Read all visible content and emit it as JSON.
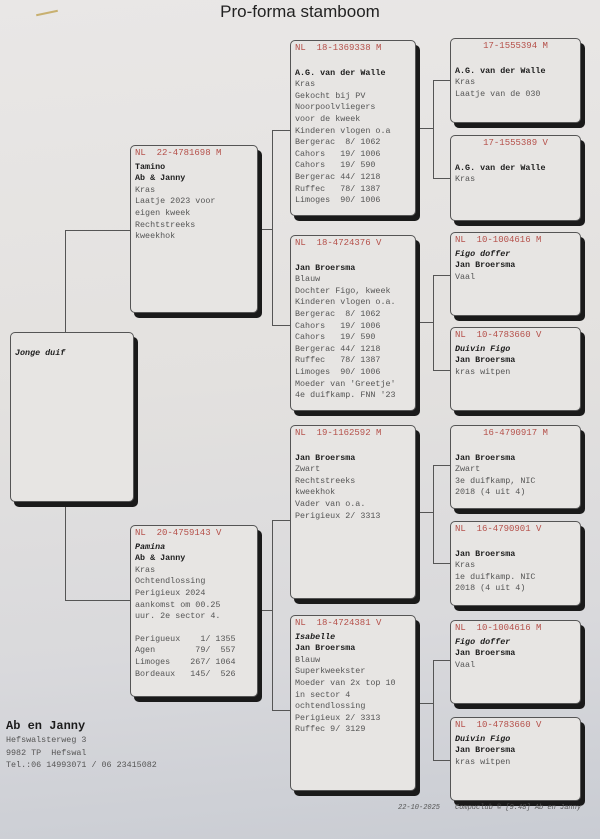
{
  "title": "Pro-forma stamboom",
  "subject": {
    "label": "Jonge duif"
  },
  "birds": [
    {
      "id": "sire",
      "ring": "NL  22-4781698 M",
      "lines": [
        {
          "t": "Tamino",
          "s": "b"
        },
        {
          "t": "Ab & Janny",
          "s": "b"
        },
        {
          "t": "Kras"
        },
        {
          "t": "Laatje 2023 voor"
        },
        {
          "t": "eigen kweek"
        },
        {
          "t": "Rechtstreeks"
        },
        {
          "t": "kweekhok"
        }
      ]
    },
    {
      "id": "dam",
      "ring": "NL  20-4759143 V",
      "lines": [
        {
          "t": "Pamina",
          "s": "i"
        },
        {
          "t": "Ab & Janny",
          "s": "b"
        },
        {
          "t": "Kras"
        },
        {
          "t": "Ochtendlossing"
        },
        {
          "t": "Perigieux 2024"
        },
        {
          "t": "aankomst om 00.25"
        },
        {
          "t": "uur. 2e sector 4."
        },
        {
          "t": "",
          "s": "gap"
        },
        {
          "t": "Perigueux    1/ 1355"
        },
        {
          "t": "Agen        79/  557"
        },
        {
          "t": "Limoges    267/ 1064"
        },
        {
          "t": "Bordeaux   145/  526"
        }
      ]
    },
    {
      "id": "ss",
      "ring": "NL  18-1369338 M",
      "lines": [
        {
          "t": "",
          "s": "gap"
        },
        {
          "t": "A.G. van der Walle",
          "s": "b"
        },
        {
          "t": "Kras"
        },
        {
          "t": "Gekocht bij PV"
        },
        {
          "t": "Noorpoolvliegers"
        },
        {
          "t": "voor de kweek"
        },
        {
          "t": "Kinderen vlogen o.a"
        },
        {
          "t": "Bergerac  8/ 1062"
        },
        {
          "t": "Cahors   19/ 1006"
        },
        {
          "t": "Cahors   19/ 590"
        },
        {
          "t": "Bergerac 44/ 1218"
        },
        {
          "t": "Ruffec   78/ 1387"
        },
        {
          "t": "Limoges  90/ 1006"
        }
      ]
    },
    {
      "id": "sd",
      "ring": "NL  18-4724376 V",
      "lines": [
        {
          "t": "",
          "s": "gap"
        },
        {
          "t": "Jan Broersma",
          "s": "b"
        },
        {
          "t": "Blauw"
        },
        {
          "t": "Dochter Figo, kweek"
        },
        {
          "t": "Kinderen vlogen o.a."
        },
        {
          "t": "Bergerac  8/ 1062"
        },
        {
          "t": "Cahors   19/ 1006"
        },
        {
          "t": "Cahors   19/ 590"
        },
        {
          "t": "Bergerac 44/ 1218"
        },
        {
          "t": "Ruffec   78/ 1387"
        },
        {
          "t": "Limoges  90/ 1006"
        },
        {
          "t": "Moeder van 'Greetje'"
        },
        {
          "t": "4e duifkamp. FNN '23"
        }
      ]
    },
    {
      "id": "ds",
      "ring": "NL  19-1162592 M",
      "lines": [
        {
          "t": "",
          "s": "gap"
        },
        {
          "t": "Jan Broersma",
          "s": "b"
        },
        {
          "t": "Zwart"
        },
        {
          "t": "Rechtstreeks"
        },
        {
          "t": "kweekhok"
        },
        {
          "t": "Vader van o.a."
        },
        {
          "t": "Perigieux 2/ 3313"
        }
      ]
    },
    {
      "id": "dd",
      "ring": "NL  18-4724381 V",
      "lines": [
        {
          "t": "Isabelle",
          "s": "i"
        },
        {
          "t": "Jan Broersma",
          "s": "b"
        },
        {
          "t": "Blauw"
        },
        {
          "t": "Superkweekster"
        },
        {
          "t": "Moeder van 2x top 10"
        },
        {
          "t": "in sector 4"
        },
        {
          "t": "ochtendlossing"
        },
        {
          "t": "Perigieux 2/ 3313"
        },
        {
          "t": "Ruffec 9/ 3129"
        }
      ]
    },
    {
      "id": "sss",
      "ring": "17-1555394 M",
      "center": true,
      "lines": [
        {
          "t": "",
          "s": "gap"
        },
        {
          "t": "A.G. van der Walle",
          "s": "b"
        },
        {
          "t": "Kras"
        },
        {
          "t": "Laatje van de 030"
        }
      ]
    },
    {
      "id": "ssd",
      "ring": "17-1555389 V",
      "center": true,
      "lines": [
        {
          "t": "",
          "s": "gap"
        },
        {
          "t": "A.G. van der Walle",
          "s": "b"
        },
        {
          "t": "Kras"
        }
      ]
    },
    {
      "id": "sds",
      "ring": "NL  10-1004616 M",
      "lines": [
        {
          "t": "Figo doffer",
          "s": "i"
        },
        {
          "t": "Jan Broersma",
          "s": "b"
        },
        {
          "t": "Vaal"
        }
      ]
    },
    {
      "id": "sdd",
      "ring": "NL  10-4783660 V",
      "lines": [
        {
          "t": "Duivin Figo",
          "s": "i"
        },
        {
          "t": "Jan Broersma",
          "s": "b"
        },
        {
          "t": "kras witpen"
        }
      ]
    },
    {
      "id": "dss",
      "ring": "16-4790917 M",
      "center": true,
      "lines": [
        {
          "t": "",
          "s": "gap"
        },
        {
          "t": "Jan Broersma",
          "s": "b"
        },
        {
          "t": "Zwart"
        },
        {
          "t": "3e duifkamp, NIC"
        },
        {
          "t": "2018 (4 uit 4)"
        }
      ]
    },
    {
      "id": "dsd",
      "ring": "NL  16-4790901 V",
      "lines": [
        {
          "t": "",
          "s": "gap"
        },
        {
          "t": "Jan Broersma",
          "s": "b"
        },
        {
          "t": "Kras"
        },
        {
          "t": "1e duifkamp. NIC"
        },
        {
          "t": "2018 (4 uit 4)"
        }
      ]
    },
    {
      "id": "dds",
      "ring": "NL  10-1004616 M",
      "lines": [
        {
          "t": "Figo doffer",
          "s": "i"
        },
        {
          "t": "Jan Broersma",
          "s": "b"
        },
        {
          "t": "Vaal"
        }
      ]
    },
    {
      "id": "ddd",
      "ring": "NL  10-4783660 V",
      "lines": [
        {
          "t": "Duivin Figo",
          "s": "i"
        },
        {
          "t": "Jan Broersma",
          "s": "b"
        },
        {
          "t": "kras witpen"
        }
      ]
    }
  ],
  "owner": {
    "name": "Ab en Janny",
    "street": "Hefswalsterweg 3",
    "city": "9982 TP  Hefswal",
    "phone": "Tel.:06 14993071 / 06 23415082"
  },
  "footer": {
    "date": "22-10-2025",
    "software": "Compuclub © [9.48]  Ab en Janny"
  },
  "colors": {
    "ring": "#b5504a",
    "text": "#555555",
    "shadow": "#1a1a1a"
  }
}
